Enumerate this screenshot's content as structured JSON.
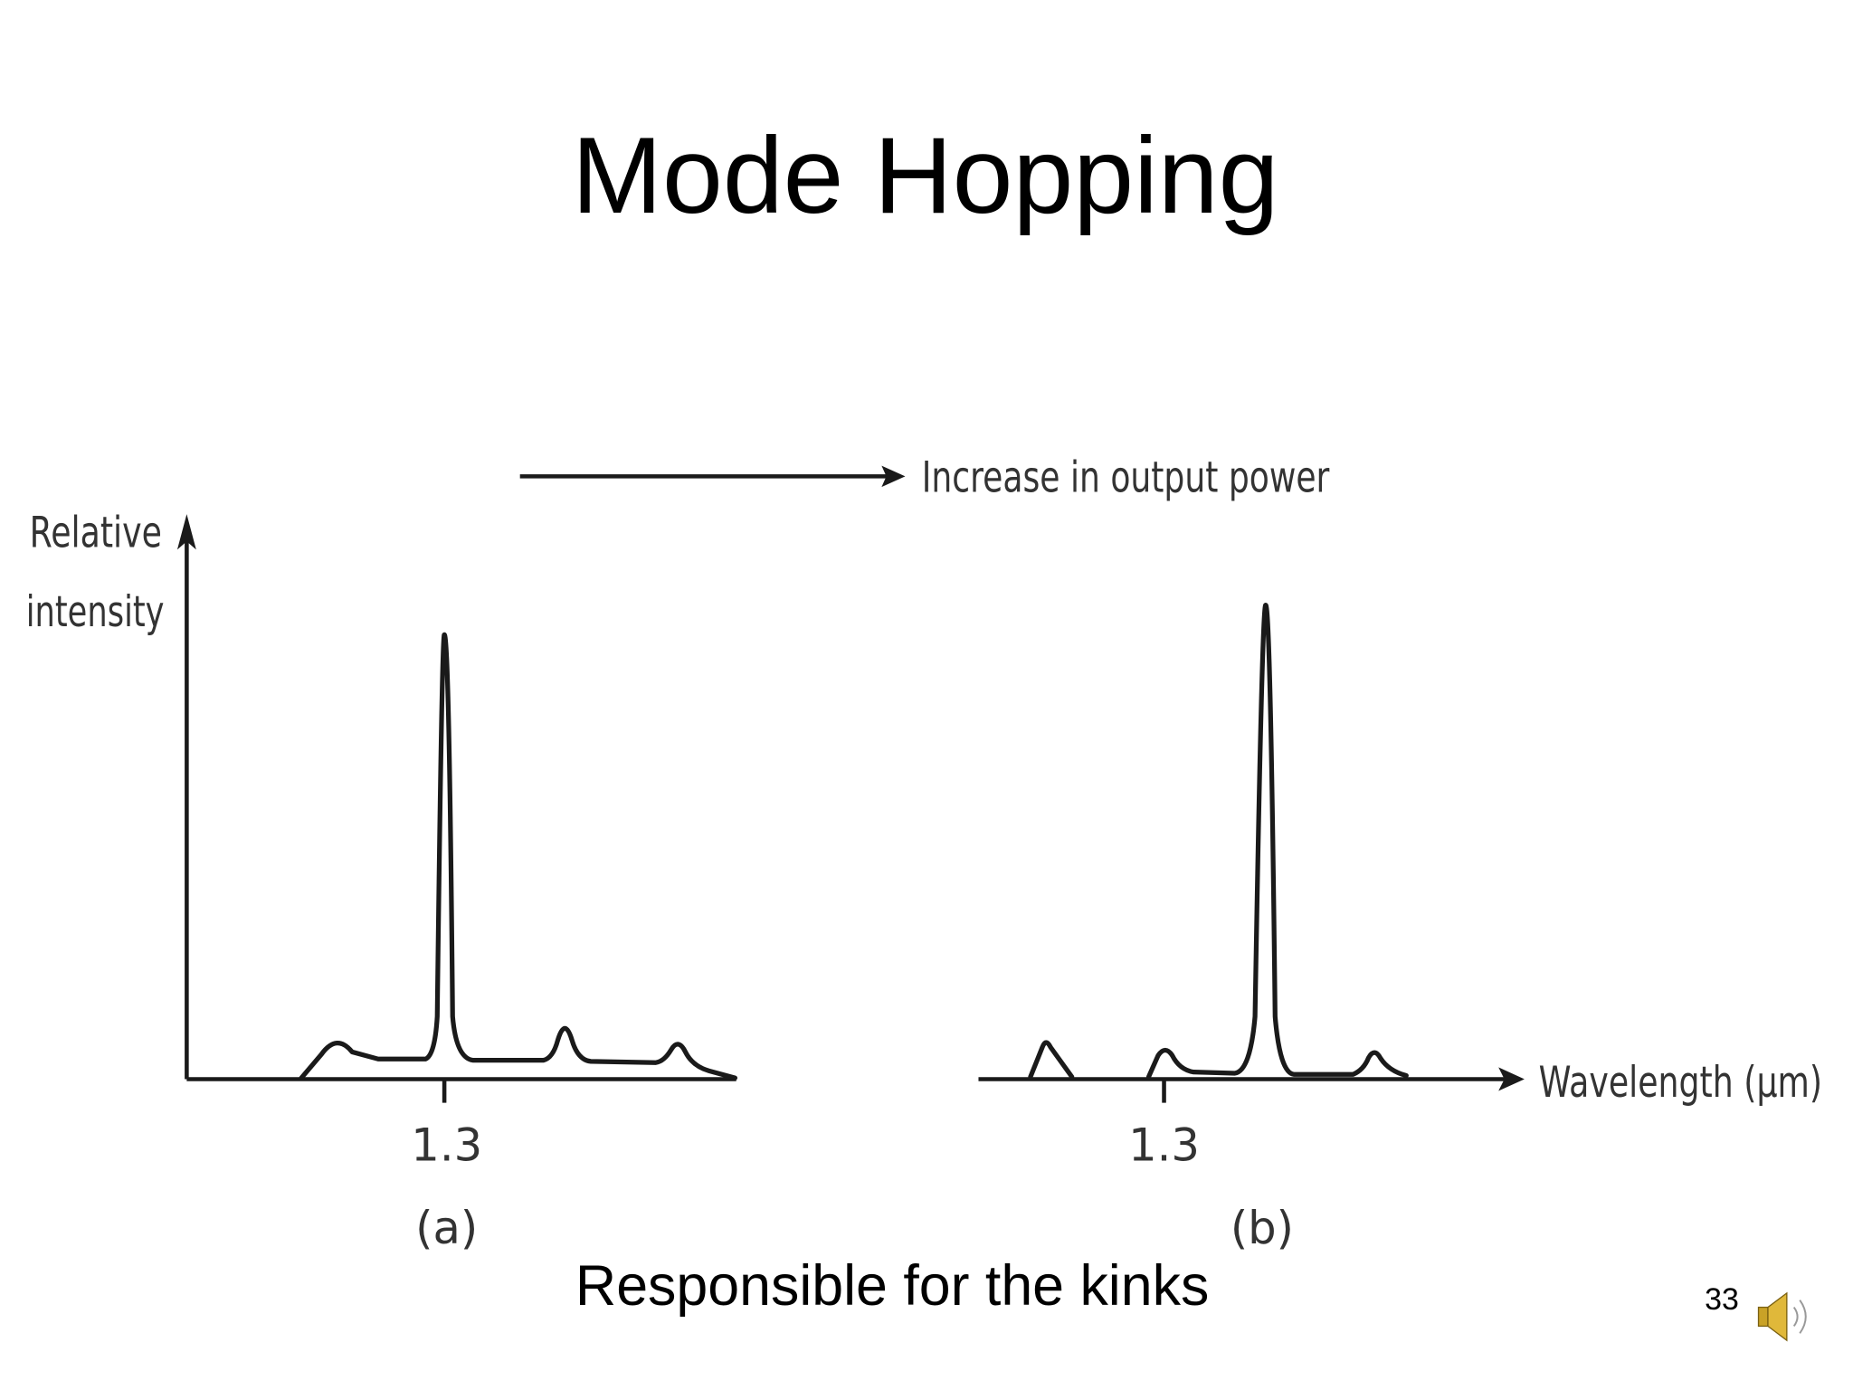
{
  "title": "Mode Hopping",
  "figure": {
    "arrow_label": "Increase in output power",
    "y_axis_label": [
      "Relative",
      "intensity"
    ],
    "x_axis_label": "Wavelength (μm)",
    "panels": [
      {
        "tick_label": "1.3",
        "caption": "(a)"
      },
      {
        "tick_label": "1.3",
        "caption": "(b)"
      }
    ]
  },
  "caption": "Responsible for the kinks",
  "page_number": "33"
}
